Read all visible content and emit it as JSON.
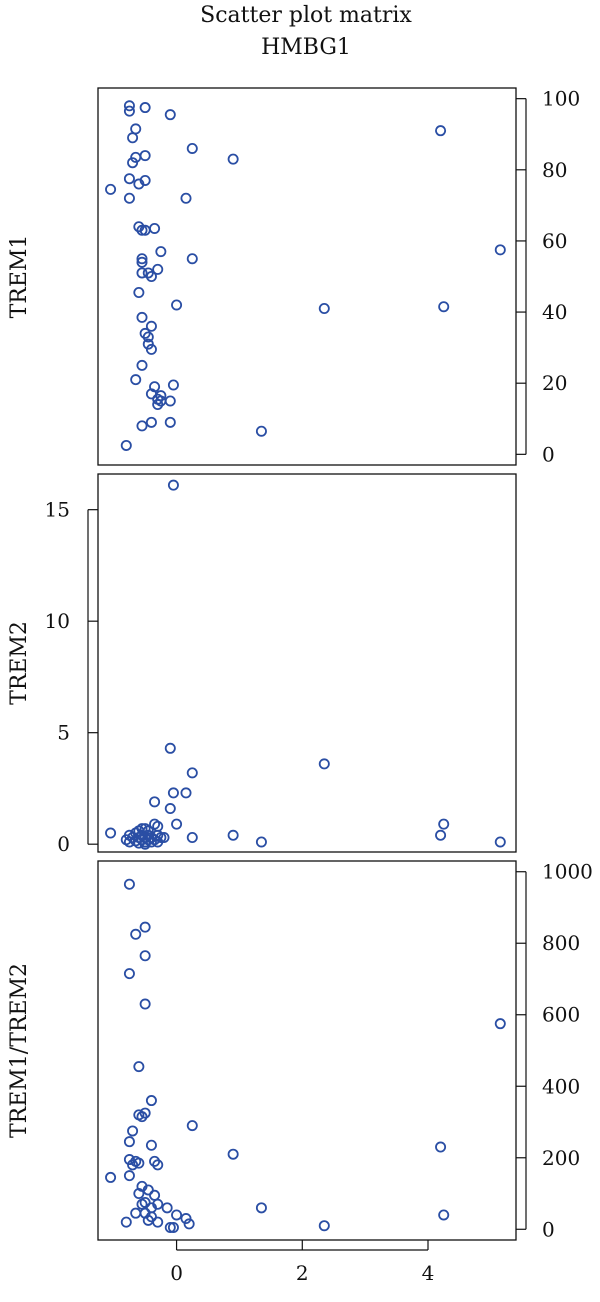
{
  "chart_data": {
    "type": "scatter",
    "title": "Scatter plot matrix",
    "subtitle": "HMBG1",
    "x_ticks": [
      "0",
      "2",
      "4"
    ],
    "x_range": [
      -1.25,
      5.4
    ],
    "style": {
      "marker_color": "#2a4ea4",
      "frame_color": "#111111"
    },
    "panels": [
      {
        "ylabel": "TREM1",
        "y_axis_side": "right",
        "y_range": [
          -3,
          103
        ],
        "y_ticks": [
          "0",
          "20",
          "40",
          "60",
          "80",
          "100"
        ],
        "points": [
          [
            -0.75,
            98
          ],
          [
            -0.5,
            97.5
          ],
          [
            -0.75,
            96.5
          ],
          [
            -0.1,
            95.5
          ],
          [
            -0.65,
            91.5
          ],
          [
            4.2,
            91
          ],
          [
            -0.7,
            89
          ],
          [
            0.25,
            86
          ],
          [
            -0.5,
            84
          ],
          [
            -0.65,
            83.5
          ],
          [
            0.9,
            83
          ],
          [
            -0.7,
            82
          ],
          [
            -0.5,
            77
          ],
          [
            -0.75,
            77.5
          ],
          [
            -0.6,
            76
          ],
          [
            -1.05,
            74.5
          ],
          [
            0.15,
            72
          ],
          [
            -0.75,
            72
          ],
          [
            -0.6,
            64
          ],
          [
            -0.35,
            63.5
          ],
          [
            -0.5,
            63
          ],
          [
            -0.55,
            63
          ],
          [
            -0.25,
            57
          ],
          [
            5.15,
            57.5
          ],
          [
            -0.55,
            55
          ],
          [
            0.25,
            55
          ],
          [
            -0.55,
            54
          ],
          [
            -0.3,
            52
          ],
          [
            -0.45,
            51
          ],
          [
            -0.55,
            51
          ],
          [
            -0.4,
            50
          ],
          [
            -0.6,
            45.5
          ],
          [
            0.0,
            42
          ],
          [
            4.25,
            41.5
          ],
          [
            2.35,
            41
          ],
          [
            -0.55,
            38.5
          ],
          [
            -0.4,
            36
          ],
          [
            -0.5,
            34
          ],
          [
            -0.45,
            33
          ],
          [
            -0.45,
            31
          ],
          [
            -0.4,
            29.5
          ],
          [
            -0.55,
            25
          ],
          [
            -0.65,
            21
          ],
          [
            -0.35,
            19
          ],
          [
            -0.05,
            19.5
          ],
          [
            -0.4,
            17
          ],
          [
            -0.25,
            16.5
          ],
          [
            -0.3,
            15.5
          ],
          [
            -0.25,
            15
          ],
          [
            -0.1,
            15
          ],
          [
            -0.3,
            14
          ],
          [
            -0.4,
            9
          ],
          [
            -0.1,
            9
          ],
          [
            -0.55,
            8
          ],
          [
            1.35,
            6.5
          ],
          [
            -0.8,
            2.5
          ]
        ]
      },
      {
        "ylabel": "TREM2",
        "y_axis_side": "left",
        "y_range": [
          -0.35,
          16.6
        ],
        "y_ticks": [
          "0",
          "5",
          "10",
          "15"
        ],
        "points": [
          [
            -0.05,
            16.1
          ],
          [
            -0.1,
            4.3
          ],
          [
            2.35,
            3.6
          ],
          [
            0.25,
            3.2
          ],
          [
            0.15,
            2.3
          ],
          [
            -0.05,
            2.3
          ],
          [
            -0.35,
            1.9
          ],
          [
            -0.1,
            1.6
          ],
          [
            4.25,
            0.9
          ],
          [
            0.0,
            0.9
          ],
          [
            -0.35,
            0.9
          ],
          [
            -0.5,
            0.7
          ],
          [
            -0.6,
            0.6
          ],
          [
            -0.3,
            0.8
          ],
          [
            4.2,
            0.4
          ],
          [
            0.9,
            0.4
          ],
          [
            0.25,
            0.3
          ],
          [
            -1.05,
            0.5
          ],
          [
            -0.75,
            0.4
          ],
          [
            -0.7,
            0.3
          ],
          [
            -0.65,
            0.5
          ],
          [
            -0.55,
            0.4
          ],
          [
            -0.45,
            0.4
          ],
          [
            -0.4,
            0.3
          ],
          [
            -0.3,
            0.4
          ],
          [
            -0.25,
            0.3
          ],
          [
            -0.2,
            0.3
          ],
          [
            -0.8,
            0.2
          ],
          [
            -0.75,
            0.1
          ],
          [
            -0.65,
            0.15
          ],
          [
            -0.55,
            0.2
          ],
          [
            -0.5,
            0.1
          ],
          [
            -0.45,
            0.2
          ],
          [
            -0.4,
            0.1
          ],
          [
            -0.35,
            0.2
          ],
          [
            -0.6,
            0.05
          ],
          [
            -0.5,
            0.0
          ],
          [
            -0.3,
            0.1
          ],
          [
            -0.45,
            0.6
          ],
          [
            -0.55,
            0.7
          ],
          [
            -0.5,
            0.3
          ],
          [
            -0.6,
            0.3
          ],
          [
            1.35,
            0.1
          ],
          [
            5.15,
            0.1
          ]
        ]
      },
      {
        "ylabel": "TREM1/TREM2",
        "y_axis_side": "right",
        "y_range": [
          -30,
          1030
        ],
        "y_ticks": [
          "0",
          "200",
          "400",
          "600",
          "800",
          "1000"
        ],
        "points": [
          [
            -0.75,
            965
          ],
          [
            -0.5,
            845
          ],
          [
            -0.65,
            825
          ],
          [
            -0.5,
            765
          ],
          [
            -0.75,
            715
          ],
          [
            -0.5,
            630
          ],
          [
            5.15,
            575
          ],
          [
            -0.6,
            455
          ],
          [
            -0.4,
            360
          ],
          [
            -0.5,
            325
          ],
          [
            -0.55,
            315
          ],
          [
            -0.6,
            320
          ],
          [
            0.25,
            290
          ],
          [
            -0.7,
            275
          ],
          [
            -0.75,
            245
          ],
          [
            -0.4,
            235
          ],
          [
            0.9,
            210
          ],
          [
            4.2,
            230
          ],
          [
            -0.75,
            195
          ],
          [
            -0.65,
            190
          ],
          [
            -0.6,
            185
          ],
          [
            -0.7,
            180
          ],
          [
            -0.3,
            180
          ],
          [
            -0.35,
            190
          ],
          [
            -1.05,
            145
          ],
          [
            -0.75,
            150
          ],
          [
            -0.55,
            120
          ],
          [
            -0.45,
            110
          ],
          [
            -0.6,
            100
          ],
          [
            -0.35,
            95
          ],
          [
            -0.5,
            75
          ],
          [
            -0.55,
            70
          ],
          [
            -0.3,
            70
          ],
          [
            -0.4,
            60
          ],
          [
            -0.15,
            60
          ],
          [
            1.35,
            60
          ],
          [
            -0.65,
            45
          ],
          [
            -0.5,
            45
          ],
          [
            -0.4,
            35
          ],
          [
            0.0,
            40
          ],
          [
            4.25,
            40
          ],
          [
            0.15,
            30
          ],
          [
            -0.45,
            25
          ],
          [
            -0.3,
            20
          ],
          [
            -0.8,
            20
          ],
          [
            0.2,
            15
          ],
          [
            -0.05,
            5
          ],
          [
            -0.1,
            5
          ],
          [
            2.35,
            10
          ]
        ]
      }
    ]
  }
}
